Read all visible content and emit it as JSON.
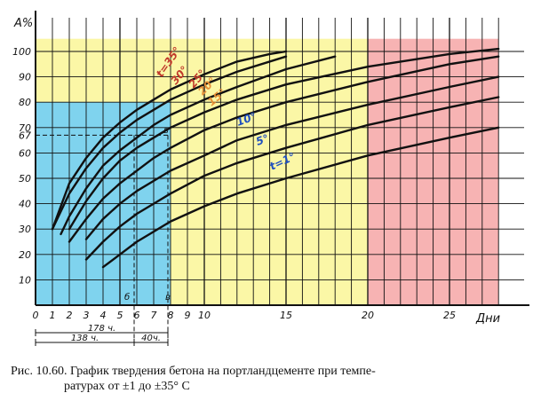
{
  "caption": {
    "line1": "Рис. 10.60. График твердения бетона на портландцементе при темпе-",
    "line2": "ратурах от ±1 до ±35° С"
  },
  "chart_data": {
    "type": "line",
    "xlabel": "Дни",
    "ylabel": "A%",
    "xlim": [
      0,
      28
    ],
    "ylim": [
      0,
      105
    ],
    "x_ticks": [
      0,
      1,
      2,
      3,
      4,
      5,
      6,
      7,
      8,
      9,
      10,
      15,
      20,
      25
    ],
    "y_ticks": [
      10,
      20,
      30,
      40,
      50,
      60,
      67,
      70,
      80,
      90,
      100
    ],
    "grid": true,
    "colors": {
      "zone_early": "#7fd3ee",
      "zone_mid": "#fbf7a6",
      "zone_late": "#f7b3b3",
      "grid": "#111111",
      "curve": "#111111",
      "label_warm": "#c0392b",
      "label_mid": "#e69138",
      "label_cool": "#1f4fbf"
    },
    "shaded_zones": [
      {
        "x": [
          0,
          8
        ],
        "y": [
          0,
          80
        ],
        "color": "zone_early"
      },
      {
        "x": [
          0,
          20
        ],
        "y": [
          0,
          105
        ],
        "color": "zone_mid"
      },
      {
        "x": [
          20,
          28
        ],
        "y": [
          0,
          105
        ],
        "color": "zone_late"
      }
    ],
    "series": [
      {
        "name": "t=35°",
        "label_color": "label_warm",
        "x": [
          1,
          2,
          3,
          4,
          5,
          6,
          7,
          8,
          10,
          12,
          14,
          15
        ],
        "y": [
          30,
          48,
          58,
          66,
          72,
          77,
          81,
          85,
          91,
          96,
          99,
          100
        ]
      },
      {
        "name": "30°",
        "label_color": "label_warm",
        "x": [
          1,
          2,
          3,
          4,
          5,
          6,
          7,
          8,
          10,
          12,
          15
        ],
        "y": [
          30,
          44,
          54,
          62,
          68,
          73,
          77,
          81,
          87,
          92,
          98
        ]
      },
      {
        "name": "25°",
        "label_color": "label_warm",
        "x": [
          1.5,
          2,
          3,
          4,
          5,
          6,
          7,
          8,
          10,
          12,
          15,
          18
        ],
        "y": [
          28,
          35,
          46,
          55,
          61,
          66,
          71,
          75,
          81,
          86,
          93,
          98
        ]
      },
      {
        "name": "20°",
        "label_color": "label_mid",
        "x": [
          2,
          3,
          4,
          5,
          6,
          7,
          8,
          10,
          12,
          15,
          20,
          25,
          28
        ],
        "y": [
          30,
          41,
          50,
          57,
          62,
          66,
          70,
          76,
          81,
          87,
          94,
          99,
          101
        ]
      },
      {
        "name": "15°",
        "label_color": "label_mid",
        "x": [
          2,
          3,
          4,
          5,
          6,
          7,
          8,
          10,
          12,
          15,
          20,
          25,
          28
        ],
        "y": [
          25,
          34,
          42,
          48,
          53,
          58,
          62,
          69,
          74,
          80,
          88,
          95,
          98
        ]
      },
      {
        "name": "10°",
        "label_color": "label_cool",
        "x": [
          3,
          4,
          5,
          6,
          7,
          8,
          10,
          12,
          15,
          20,
          25,
          28
        ],
        "y": [
          26,
          34,
          40,
          45,
          49,
          53,
          59,
          65,
          71,
          79,
          86,
          90
        ]
      },
      {
        "name": "5°",
        "label_color": "label_cool",
        "x": [
          3,
          4,
          5,
          6,
          7,
          8,
          10,
          12,
          15,
          20,
          25,
          28
        ],
        "y": [
          18,
          25,
          31,
          36,
          40,
          44,
          51,
          56,
          62,
          71,
          78,
          82
        ]
      },
      {
        "name": "t=1°",
        "label_color": "label_cool",
        "x": [
          4,
          5,
          6,
          7,
          8,
          10,
          12,
          15,
          20,
          25,
          28
        ],
        "y": [
          15,
          20,
          25,
          29,
          33,
          39,
          44,
          50,
          59,
          66,
          70
        ]
      }
    ],
    "annotations": {
      "reference_level": "67",
      "point_b": "б",
      "point_v": "в",
      "durations": [
        "178 ч.",
        "138 ч.",
        "40ч."
      ]
    }
  }
}
